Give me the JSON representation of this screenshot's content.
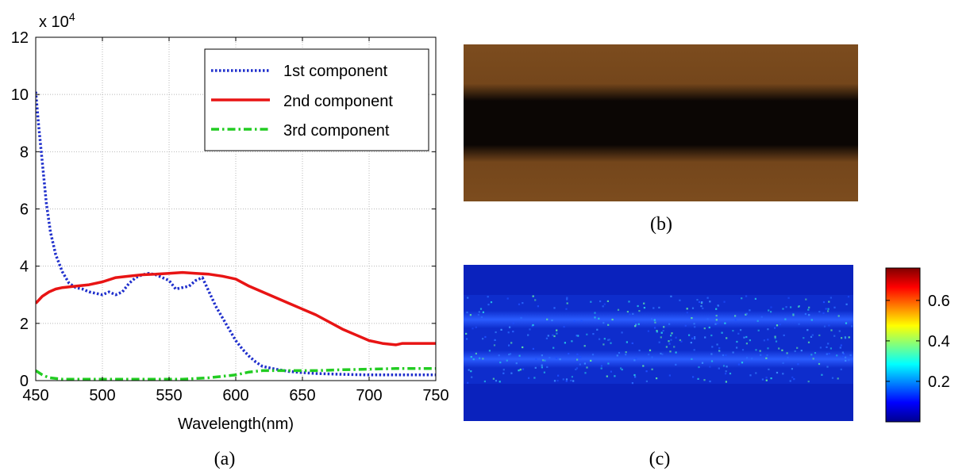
{
  "chart_data": [
    {
      "panel": "(a)",
      "type": "line",
      "xlabel": "Wavelength(nm)",
      "ylabel": "",
      "y_multiplier": "x 10",
      "y_exponent": "4",
      "xlim": [
        450,
        750
      ],
      "ylim": [
        0,
        12
      ],
      "x_ticks": [
        450,
        500,
        550,
        600,
        650,
        700,
        750
      ],
      "y_ticks": [
        0,
        2,
        4,
        6,
        8,
        10,
        12
      ],
      "grid": true,
      "legend_position": "top-right",
      "series": [
        {
          "name": "1st component",
          "color": "#1f2fcc",
          "style": "dotted",
          "x": [
            450,
            452,
            455,
            458,
            461,
            465,
            470,
            475,
            480,
            485,
            490,
            495,
            500,
            505,
            510,
            515,
            520,
            525,
            530,
            535,
            540,
            545,
            550,
            555,
            560,
            565,
            570,
            575,
            580,
            585,
            590,
            595,
            600,
            605,
            610,
            615,
            620,
            630,
            640,
            650,
            660,
            680,
            700,
            720,
            750
          ],
          "y": [
            10.1,
            9.0,
            7.6,
            6.2,
            5.2,
            4.4,
            3.8,
            3.4,
            3.25,
            3.2,
            3.1,
            3.05,
            3.0,
            3.1,
            3.0,
            3.1,
            3.4,
            3.6,
            3.7,
            3.75,
            3.7,
            3.6,
            3.5,
            3.2,
            3.25,
            3.3,
            3.5,
            3.6,
            3.1,
            2.6,
            2.2,
            1.8,
            1.4,
            1.1,
            0.85,
            0.65,
            0.5,
            0.4,
            0.32,
            0.28,
            0.25,
            0.22,
            0.2,
            0.2,
            0.2
          ]
        },
        {
          "name": "2nd component",
          "color": "#e81414",
          "style": "solid",
          "x": [
            450,
            455,
            460,
            465,
            470,
            480,
            490,
            500,
            510,
            520,
            530,
            540,
            550,
            560,
            570,
            580,
            590,
            600,
            610,
            620,
            630,
            640,
            650,
            660,
            670,
            680,
            690,
            700,
            710,
            720,
            725,
            730,
            740,
            750
          ],
          "y": [
            2.7,
            2.95,
            3.1,
            3.2,
            3.25,
            3.3,
            3.35,
            3.45,
            3.6,
            3.65,
            3.7,
            3.72,
            3.75,
            3.78,
            3.75,
            3.72,
            3.65,
            3.55,
            3.3,
            3.1,
            2.9,
            2.7,
            2.5,
            2.3,
            2.05,
            1.8,
            1.6,
            1.4,
            1.3,
            1.25,
            1.3,
            1.3,
            1.3,
            1.3
          ]
        },
        {
          "name": "3rd component",
          "color": "#22cc22",
          "style": "dash-dot",
          "x": [
            450,
            455,
            460,
            470,
            480,
            500,
            520,
            540,
            560,
            580,
            590,
            600,
            610,
            620,
            630,
            640,
            650,
            660,
            680,
            700,
            720,
            750
          ],
          "y": [
            0.35,
            0.2,
            0.1,
            0.05,
            0.05,
            0.05,
            0.05,
            0.05,
            0.05,
            0.1,
            0.15,
            0.2,
            0.3,
            0.35,
            0.35,
            0.35,
            0.35,
            0.35,
            0.38,
            0.4,
            0.42,
            0.42
          ]
        }
      ]
    },
    {
      "panel": "(b)",
      "type": "image",
      "colors": {
        "band": "#7c4c1e",
        "center": "#050302"
      }
    },
    {
      "panel": "(c)",
      "type": "heatmap",
      "colorbar_ticks": [
        0.2,
        0.4,
        0.6
      ],
      "colorbar_range": [
        0,
        0.76
      ],
      "colors": {
        "background": "#0a22bd",
        "stripe": "#2050ff"
      }
    }
  ]
}
